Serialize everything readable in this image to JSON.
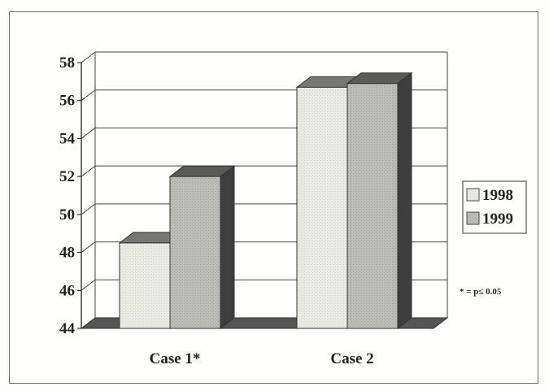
{
  "chart_data": {
    "type": "bar",
    "categories": [
      "Case 1*",
      "Case 2"
    ],
    "series": [
      {
        "name": "1998",
        "values": [
          48.5,
          56.7
        ]
      },
      {
        "name": "1999",
        "values": [
          52.0,
          56.9
        ]
      }
    ],
    "ylim": [
      44,
      58
    ],
    "yticks": [
      44,
      46,
      48,
      50,
      52,
      54,
      56,
      58
    ],
    "grid": true,
    "legend_position": "right",
    "annotation": "* = p≤ 0.05",
    "colors": {
      "1998": "#ebebe6",
      "1999": "#bdbdb8",
      "floor": "#555555"
    }
  }
}
